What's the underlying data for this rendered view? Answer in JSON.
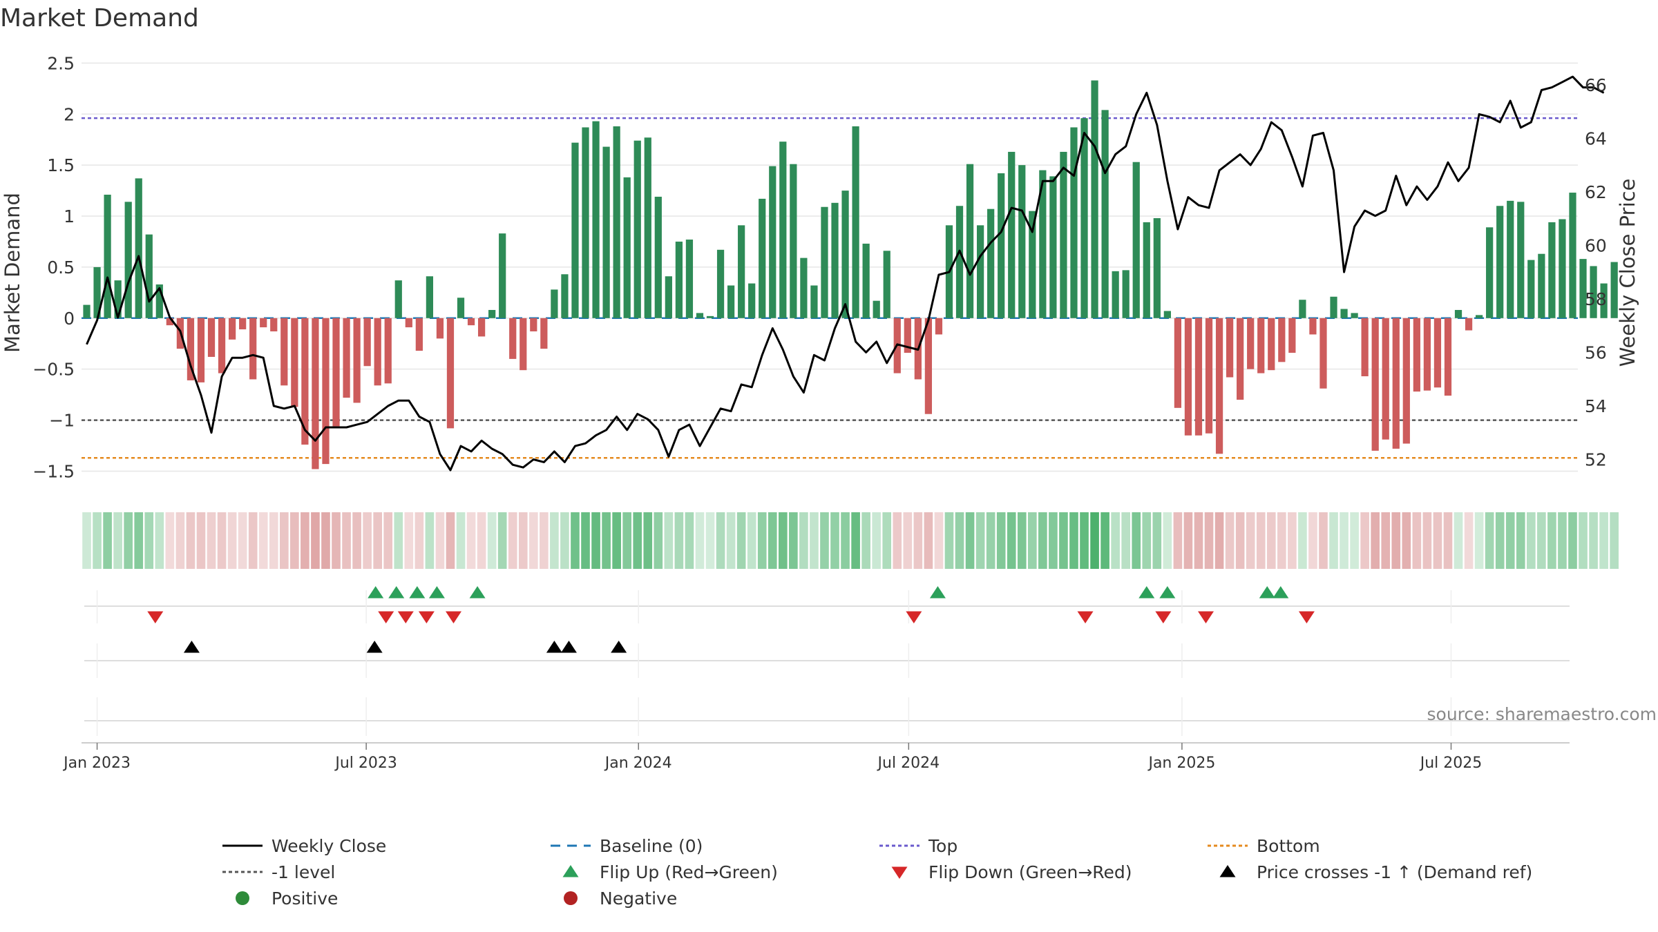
{
  "chart_data": {
    "type": "bar",
    "title": "Market Demand",
    "ylabel": "Market Demand",
    "y2label": "Weekly Close Price",
    "source": "source: sharemaestro.com",
    "ylim": [
      -1.7,
      2.55
    ],
    "y2lim": [
      50.8,
      67.0
    ],
    "yticks": [
      2.5,
      2,
      1.5,
      1,
      0.5,
      0,
      -0.5,
      -1,
      -1.5
    ],
    "ytick_labels": [
      "2.5",
      "2",
      "1.5",
      "1",
      "0.5",
      "0",
      "−0.5",
      "−1",
      "−1.5"
    ],
    "y2ticks": [
      66,
      64,
      62,
      60,
      58,
      56,
      54,
      52
    ],
    "xlim_weeks": [
      -1.5,
      142.5
    ],
    "xticks": [
      {
        "label": "Jan 2023",
        "week": 0
      },
      {
        "label": "Jul 2023",
        "week": 25.9
      },
      {
        "label": "Jan 2024",
        "week": 52.1
      },
      {
        "label": "Jul 2024",
        "week": 78.1
      },
      {
        "label": "Jan 2025",
        "week": 104.4
      },
      {
        "label": "Jul 2025",
        "week": 130.3
      }
    ],
    "reference_lines": {
      "top": 1.96,
      "minus_one": -1.0,
      "bottom": -1.37,
      "baseline": 0
    },
    "bar_start_week": -1,
    "bars": [
      0.13,
      0.5,
      1.21,
      0.37,
      1.14,
      1.37,
      0.82,
      0.33,
      -0.07,
      -0.3,
      -0.61,
      -0.63,
      -0.38,
      -0.54,
      -0.21,
      -0.11,
      -0.6,
      -0.09,
      -0.13,
      -0.66,
      -0.87,
      -1.24,
      -1.48,
      -1.43,
      -1.06,
      -0.78,
      -0.83,
      -0.47,
      -0.66,
      -0.64,
      0.37,
      -0.09,
      -0.32,
      0.41,
      -0.2,
      -1.08,
      0.2,
      -0.07,
      -0.18,
      0.08,
      0.83,
      -0.4,
      -0.51,
      -0.13,
      -0.3,
      0.28,
      0.43,
      1.72,
      1.87,
      1.93,
      1.68,
      1.88,
      1.38,
      1.74,
      1.77,
      1.19,
      0.41,
      0.75,
      0.77,
      0.05,
      0.02,
      0.67,
      0.32,
      0.91,
      0.34,
      1.17,
      1.49,
      1.73,
      1.51,
      0.59,
      0.32,
      1.09,
      1.13,
      1.25,
      1.88,
      0.73,
      0.17,
      0.66,
      -0.54,
      -0.34,
      -0.6,
      -0.94,
      -0.16,
      0.91,
      1.1,
      1.51,
      0.91,
      1.07,
      1.42,
      1.63,
      1.5,
      1.05,
      1.45,
      1.39,
      1.63,
      1.87,
      1.96,
      2.33,
      2.04,
      0.46,
      0.47,
      1.53,
      0.94,
      0.98,
      0.07,
      -0.88,
      -1.15,
      -1.15,
      -1.13,
      -1.33,
      -0.58,
      -0.8,
      -0.5,
      -0.54,
      -0.51,
      -0.43,
      -0.34,
      0.18,
      -0.16,
      -0.69,
      0.21,
      0.09,
      0.05,
      -0.57,
      -1.3,
      -1.19,
      -1.28,
      -1.23,
      -0.72,
      -0.71,
      -0.68,
      -0.76,
      0.08,
      -0.12,
      0.03,
      0.89,
      1.1,
      1.15,
      1.14,
      0.57,
      0.63,
      0.94,
      0.97,
      1.23,
      0.58,
      0.51,
      0.34,
      0.55
    ],
    "price_start_week": -1,
    "price": [
      56.3,
      57.2,
      58.8,
      57.3,
      58.6,
      59.6,
      57.9,
      58.4,
      57.3,
      56.8,
      55.5,
      54.4,
      53.0,
      55.1,
      55.8,
      55.8,
      55.9,
      55.8,
      54.0,
      53.9,
      54.0,
      53.1,
      52.7,
      53.2,
      53.2,
      53.2,
      53.3,
      53.4,
      53.7,
      54.0,
      54.2,
      54.2,
      53.6,
      53.4,
      52.2,
      51.6,
      52.5,
      52.3,
      52.7,
      52.4,
      52.2,
      51.8,
      51.7,
      52.0,
      51.9,
      52.3,
      51.9,
      52.5,
      52.6,
      52.9,
      53.1,
      53.6,
      53.1,
      53.7,
      53.5,
      53.1,
      52.1,
      53.1,
      53.3,
      52.5,
      53.2,
      53.9,
      53.8,
      54.8,
      54.7,
      55.9,
      56.9,
      56.1,
      55.1,
      54.5,
      55.9,
      55.7,
      56.9,
      57.8,
      56.4,
      56.0,
      56.4,
      55.6,
      56.3,
      56.2,
      56.1,
      57.2,
      58.9,
      59.0,
      59.8,
      58.9,
      59.6,
      60.1,
      60.5,
      61.4,
      61.3,
      60.5,
      62.4,
      62.4,
      62.9,
      62.6,
      64.2,
      63.7,
      62.7,
      63.4,
      63.7,
      64.9,
      65.7,
      64.5,
      62.4,
      60.6,
      61.8,
      61.5,
      61.4,
      62.8,
      63.1,
      63.4,
      63.0,
      63.6,
      64.6,
      64.3,
      63.3,
      62.2,
      64.1,
      64.2,
      62.8,
      59.0,
      60.7,
      61.3,
      61.1,
      61.3,
      62.6,
      61.5,
      62.2,
      61.7,
      62.2,
      63.1,
      62.4,
      62.9,
      64.9,
      64.8,
      64.6,
      65.4,
      64.4,
      64.6,
      65.8,
      65.9,
      66.1,
      66.3,
      65.9,
      65.9,
      65.7
    ],
    "flip_up_weeks": [
      26.8,
      28.8,
      30.8,
      32.7,
      36.6,
      80.9,
      101.0,
      103.0,
      112.6,
      113.9
    ],
    "flip_down_weeks": [
      5.6,
      27.8,
      29.7,
      31.7,
      34.3,
      78.6,
      95.1,
      102.6,
      106.7,
      116.4
    ],
    "price_cross_weeks": [
      9.1,
      26.7,
      44.0,
      45.4,
      50.2
    ],
    "price_cross_weeks_note": "weeks for black markers; values are approximate",
    "legend": [
      {
        "label": "Weekly Close",
        "kind": "line-solid",
        "color": "#000000"
      },
      {
        "label": "Baseline (0)",
        "kind": "line-dash",
        "color": "#1f77b4"
      },
      {
        "label": "Top",
        "kind": "line-dot",
        "color": "#6a5acd"
      },
      {
        "label": "Bottom",
        "kind": "line-dot",
        "color": "#e58a1f"
      },
      {
        "label": "-1 level",
        "kind": "line-dot",
        "color": "#555555"
      },
      {
        "label": "Flip Up (Red→Green)",
        "kind": "tri-up",
        "color": "#2ca05a"
      },
      {
        "label": "Flip Down (Green→Red)",
        "kind": "tri-down",
        "color": "#d62728"
      },
      {
        "label": "Price crosses -1 ↑ (Demand ref)",
        "kind": "tri-up",
        "color": "#000000"
      },
      {
        "label": "Positive",
        "kind": "dot",
        "color": "#2e8b3a"
      },
      {
        "label": "Negative",
        "kind": "dot",
        "color": "#b22222"
      }
    ],
    "colors": {
      "positive": "#2e8b57",
      "negative": "#cd5c5c",
      "price": "#000000"
    }
  }
}
